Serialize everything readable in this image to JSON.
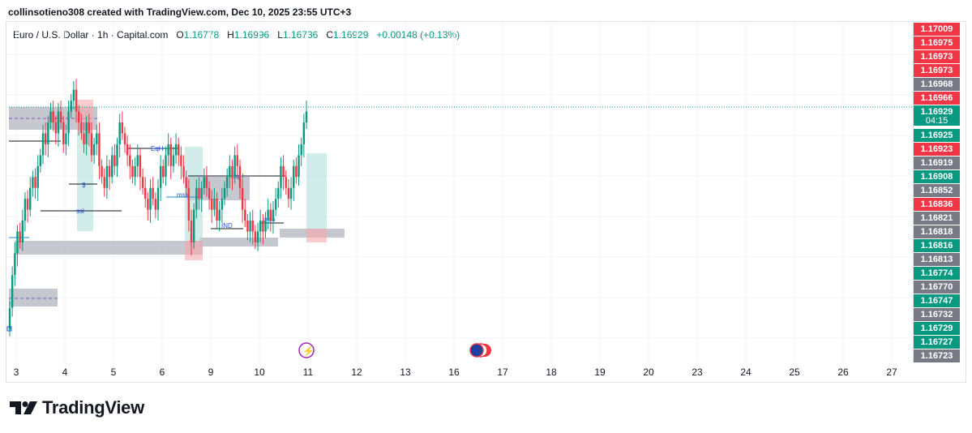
{
  "header": {
    "text": "collinsotieno308 created with TradingView.com, Dec 10, 2025 23:55 UTC+3"
  },
  "legend": {
    "symbol": "Euro / U.S. Dollar · 1h · Capital.com",
    "o_label": "O",
    "o_value": "1.16778",
    "h_label": "H",
    "h_value": "1.16996",
    "l_label": "L",
    "l_value": "1.16736",
    "c_label": "C",
    "c_value": "1.16929",
    "change": "+0.00148 (+0.13%)"
  },
  "colors": {
    "up": "#089981",
    "down": "#f23645",
    "neutral": "#787b86",
    "zone": "#b2b5be",
    "bull_box": "#b2dfdb",
    "bear_box": "#f7a8ae"
  },
  "chart_data": {
    "type": "candlestick",
    "symbol": "EURUSD",
    "timeframe": "1h",
    "ylim": [
      1.1672,
      1.1701
    ],
    "x_ticks": [
      "3",
      "4",
      "5",
      "6",
      "9",
      "10",
      "11",
      "12",
      "13",
      "16",
      "17",
      "18",
      "19",
      "20",
      "23",
      "24",
      "25",
      "26",
      "27"
    ],
    "last_price": "1.16929",
    "countdown": "04:15",
    "price_labels": [
      {
        "value": "1.17009",
        "color": "down"
      },
      {
        "value": "1.16975",
        "color": "down"
      },
      {
        "value": "1.16973",
        "color": "down"
      },
      {
        "value": "1.16973",
        "color": "down"
      },
      {
        "value": "1.16968",
        "color": "neutral"
      },
      {
        "value": "1.16966",
        "color": "down"
      },
      {
        "value": "1.16929",
        "color": "up"
      },
      {
        "value": "1.16925",
        "color": "up"
      },
      {
        "value": "1.16923",
        "color": "down"
      },
      {
        "value": "1.16919",
        "color": "neutral"
      },
      {
        "value": "1.16908",
        "color": "up"
      },
      {
        "value": "1.16852",
        "color": "neutral"
      },
      {
        "value": "1.16836",
        "color": "down"
      },
      {
        "value": "1.16821",
        "color": "neutral"
      },
      {
        "value": "1.16818",
        "color": "neutral"
      },
      {
        "value": "1.16816",
        "color": "up"
      },
      {
        "value": "1.16813",
        "color": "neutral"
      },
      {
        "value": "1.16774",
        "color": "up"
      },
      {
        "value": "1.16770",
        "color": "neutral"
      },
      {
        "value": "1.16747",
        "color": "up"
      },
      {
        "value": "1.16732",
        "color": "neutral"
      },
      {
        "value": "1.16729",
        "color": "up"
      },
      {
        "value": "1.16727",
        "color": "up"
      },
      {
        "value": "1.16723",
        "color": "neutral"
      }
    ],
    "annotations": [
      "EqH",
      "EqH",
      "$",
      "ssl",
      "mss",
      "IND",
      "mss"
    ],
    "closes": [
      1.1675,
      1.1678,
      1.168,
      1.1682,
      1.1681,
      1.1683,
      1.1685,
      1.1684,
      1.1686,
      1.1687,
      1.1686,
      1.1688,
      1.1689,
      1.1691,
      1.169,
      1.1692,
      1.1693,
      1.1692,
      1.1691,
      1.1693,
      1.1692,
      1.169,
      1.1691,
      1.1693,
      1.1694,
      1.1695,
      1.1693,
      1.1692,
      1.1691,
      1.169,
      1.1692,
      1.1691,
      1.1689,
      1.169,
      1.1691,
      1.1688,
      1.1687,
      1.1686,
      1.1688,
      1.1687,
      1.1689,
      1.1688,
      1.169,
      1.1692,
      1.1691,
      1.169,
      1.1689,
      1.1688,
      1.1687,
      1.1688,
      1.1689,
      1.1687,
      1.1686,
      1.1685,
      1.1684,
      1.1686,
      1.1685,
      1.1684,
      1.1686,
      1.1688,
      1.1687,
      1.1689,
      1.169,
      1.1688,
      1.1689,
      1.169,
      1.1689,
      1.1688,
      1.1687,
      1.1686,
      1.1683,
      1.1681,
      1.1684,
      1.1686,
      1.1685,
      1.1686,
      1.1687,
      1.1686,
      1.1685,
      1.1684,
      1.1685,
      1.1683,
      1.1684,
      1.1685,
      1.1686,
      1.1687,
      1.1688,
      1.1687,
      1.1689,
      1.1688,
      1.1686,
      1.1684,
      1.1683,
      1.1682,
      1.1683,
      1.1682,
      1.1681,
      1.1682,
      1.1683,
      1.1682,
      1.1683,
      1.1684,
      1.1683,
      1.1684,
      1.1685,
      1.1686,
      1.1688,
      1.1687,
      1.1686,
      1.1685,
      1.1686,
      1.1688,
      1.1687,
      1.1689,
      1.169,
      1.1692,
      1.1693
    ]
  },
  "logo": {
    "text": "TradingView"
  }
}
